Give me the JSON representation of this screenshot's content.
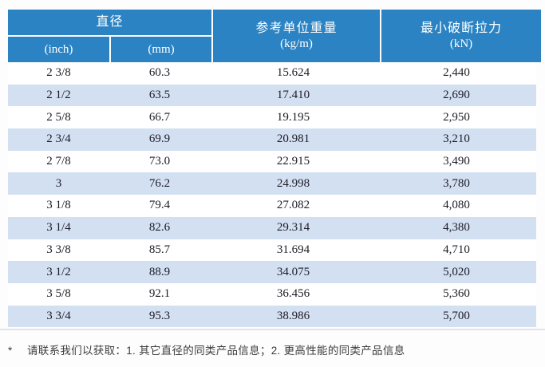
{
  "header": {
    "diameter_label": "直径",
    "inch_label": "(inch)",
    "mm_label": "(mm)",
    "weight_label": "参考单位重量",
    "weight_unit": "(kg/m)",
    "breaking_label": "最小破断拉力",
    "breaking_unit": "(kN)"
  },
  "rows": [
    {
      "inch": "2 3/8",
      "mm": "60.3",
      "weight": "15.624",
      "breaking": "2,440"
    },
    {
      "inch": "2 1/2",
      "mm": "63.5",
      "weight": "17.410",
      "breaking": "2,690"
    },
    {
      "inch": "2 5/8",
      "mm": "66.7",
      "weight": "19.195",
      "breaking": "2,950"
    },
    {
      "inch": "2 3/4",
      "mm": "69.9",
      "weight": "20.981",
      "breaking": "3,210"
    },
    {
      "inch": "2 7/8",
      "mm": "73.0",
      "weight": "22.915",
      "breaking": "3,490"
    },
    {
      "inch": "3",
      "mm": "76.2",
      "weight": "24.998",
      "breaking": "3,780"
    },
    {
      "inch": "3 1/8",
      "mm": "79.4",
      "weight": "27.082",
      "breaking": "4,080"
    },
    {
      "inch": "3 1/4",
      "mm": "82.6",
      "weight": "29.314",
      "breaking": "4,380"
    },
    {
      "inch": "3 3/8",
      "mm": "85.7",
      "weight": "31.694",
      "breaking": "4,710"
    },
    {
      "inch": "3 1/2",
      "mm": "88.9",
      "weight": "34.075",
      "breaking": "5,020"
    },
    {
      "inch": "3 5/8",
      "mm": "92.1",
      "weight": "36.456",
      "breaking": "5,360"
    },
    {
      "inch": "3 3/4",
      "mm": "95.3",
      "weight": "38.986",
      "breaking": "5,700"
    }
  ],
  "footnote": {
    "marker": "*",
    "text": "请联系我们以获取：1. 其它直径的同类产品信息；2. 更高性能的同类产品信息"
  },
  "colors": {
    "header_blue": "#2b83c3",
    "stripe_blue": "#d3e0f1",
    "text_dark": "#1c1c26",
    "footnote_gray": "#3d3d3d"
  },
  "chart_data": {
    "type": "table",
    "columns": [
      "直径 (inch)",
      "直径 (mm)",
      "参考单位重量 (kg/m)",
      "最小破断拉力 (kN)"
    ],
    "rows": [
      [
        "2 3/8",
        60.3,
        15.624,
        2440
      ],
      [
        "2 1/2",
        63.5,
        17.41,
        2690
      ],
      [
        "2 5/8",
        66.7,
        19.195,
        2950
      ],
      [
        "2 3/4",
        69.9,
        20.981,
        3210
      ],
      [
        "2 7/8",
        73.0,
        22.915,
        3490
      ],
      [
        "3",
        76.2,
        24.998,
        3780
      ],
      [
        "3 1/8",
        79.4,
        27.082,
        4080
      ],
      [
        "3 1/4",
        82.6,
        29.314,
        4380
      ],
      [
        "3 3/8",
        85.7,
        31.694,
        4710
      ],
      [
        "3 1/2",
        88.9,
        34.075,
        5020
      ],
      [
        "3 5/8",
        92.1,
        36.456,
        5360
      ],
      [
        "3 3/4",
        95.3,
        38.986,
        5700
      ]
    ]
  }
}
